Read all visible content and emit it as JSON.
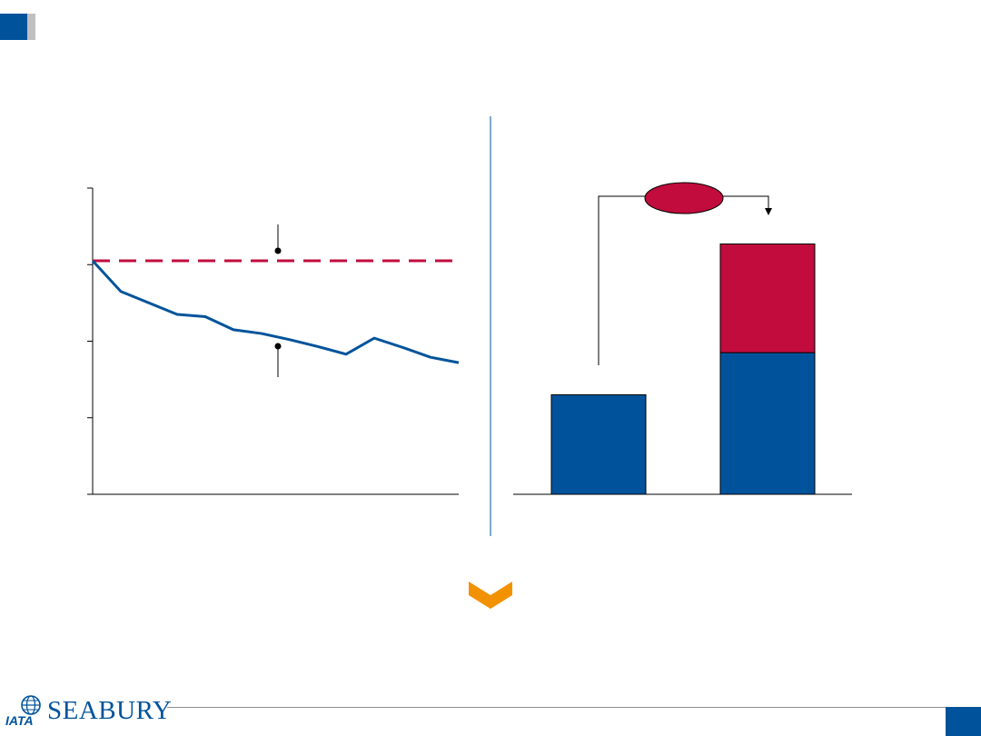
{
  "chart_data": [
    {
      "type": "line",
      "x": [
        0,
        1,
        2,
        3,
        4,
        5,
        6,
        7,
        8,
        9,
        10,
        11,
        12,
        13
      ],
      "ylim": [
        0,
        4
      ],
      "yticks": [
        0,
        1,
        2,
        3,
        4
      ],
      "grid": false,
      "series": [
        {
          "values": [
            3.05,
            2.65,
            2.5,
            2.35,
            2.32,
            2.15,
            2.1,
            2.02,
            1.93,
            1.83,
            2.04,
            1.92,
            1.79,
            1.72
          ],
          "color": "#00539b",
          "style": "solid"
        },
        {
          "values": [
            3.05,
            3.05,
            3.05,
            3.05,
            3.05,
            3.05,
            3.05,
            3.05,
            3.05,
            3.05,
            3.05,
            3.05,
            3.05,
            3.05
          ],
          "color": "#c10c3d",
          "style": "dashed"
        }
      ]
    },
    {
      "type": "bar",
      "categories": [
        "",
        ""
      ],
      "ylim": [
        0,
        4
      ],
      "series": [
        {
          "values": [
            1.3,
            1.85
          ],
          "color": "#00539b"
        },
        {
          "values": [
            0,
            1.42
          ],
          "color": "#c10c3d"
        }
      ],
      "callout": {
        "shape": "ellipse",
        "color": "#c10c3d"
      }
    }
  ],
  "colors": {
    "brand_blue": "#00539b",
    "accent_red": "#c10c3d",
    "chevron_orange": "#f39200"
  },
  "icons": {
    "chevron": "chevron-down-icon",
    "logo": "seabury-iata-logo"
  },
  "logo": {
    "wordmark": "SEABURY",
    "sub": "IATA"
  }
}
